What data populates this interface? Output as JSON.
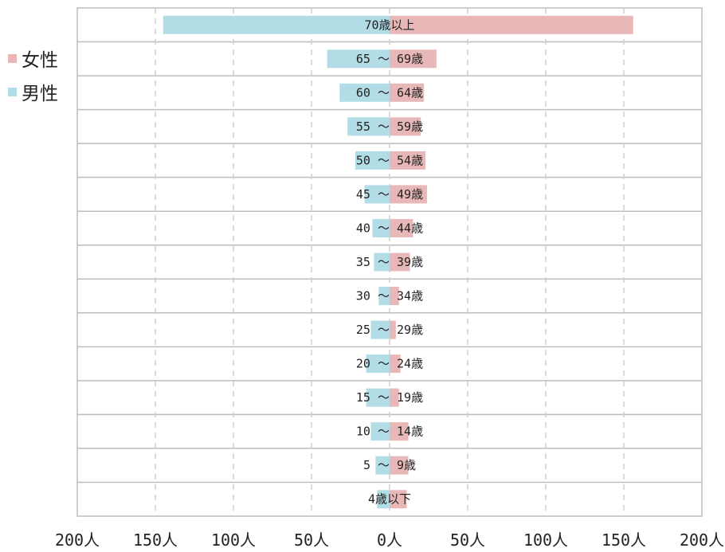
{
  "chart_data": {
    "type": "bar",
    "orientation": "horizontal",
    "layout": "population-pyramid",
    "title": "",
    "xlabel": "",
    "ylabel": "",
    "xlim": [
      -200,
      200
    ],
    "x_ticks": [
      -200,
      -150,
      -100,
      -50,
      0,
      50,
      100,
      150,
      200
    ],
    "x_tick_labels": [
      "200人",
      "150人",
      "100人",
      "50人",
      "0人",
      "50人",
      "100人",
      "150人",
      "200人"
    ],
    "grid": "vertical dashed",
    "legend_position": "left",
    "categories": [
      "70歳以上",
      "65 ～ 69歳",
      "60 ～ 64歳",
      "55 ～ 59歳",
      "50 ～ 54歳",
      "45 ～ 49歳",
      "40 ～ 44歳",
      "35 ～ 39歳",
      "30 ～ 34歳",
      "25 ～ 29歳",
      "20 ～ 24歳",
      "15 ～ 19歳",
      "10 ～ 14歳",
      "5 ～ 9歳",
      "4歳以下"
    ],
    "series": [
      {
        "name": "女性",
        "side": "right",
        "color": "#e8b8b8",
        "values": [
          156,
          30,
          22,
          20,
          23,
          24,
          15,
          13,
          6,
          4,
          7,
          6,
          12,
          12,
          11
        ]
      },
      {
        "name": "男性",
        "side": "left",
        "color": "#b3dde6",
        "values": [
          145,
          40,
          32,
          27,
          22,
          16,
          11,
          10,
          7,
          12,
          15,
          15,
          12,
          9,
          8
        ]
      }
    ]
  }
}
